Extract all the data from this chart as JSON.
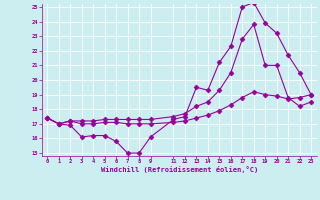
{
  "bg_color": "#cceef0",
  "grid_color": "#b0dde0",
  "line_color": "#990099",
  "xlabel": "Windchill (Refroidissement éolien,°C)",
  "ylim": [
    15,
    25
  ],
  "xlim": [
    -0.5,
    23.5
  ],
  "yticks": [
    15,
    16,
    17,
    18,
    19,
    20,
    21,
    22,
    23,
    24,
    25
  ],
  "xticks": [
    0,
    1,
    2,
    3,
    4,
    5,
    6,
    7,
    8,
    9,
    11,
    12,
    13,
    14,
    15,
    16,
    17,
    18,
    19,
    20,
    21,
    22,
    23
  ],
  "line1_x": [
    0,
    1,
    2,
    3,
    4,
    5,
    6,
    7,
    8,
    9,
    11,
    12,
    13,
    14,
    15,
    16,
    17,
    18,
    19,
    20,
    21,
    22,
    23
  ],
  "line1_y": [
    17.4,
    17.0,
    16.9,
    16.1,
    16.2,
    16.2,
    15.8,
    15.0,
    15.0,
    16.1,
    17.3,
    17.5,
    19.5,
    19.3,
    21.2,
    22.3,
    25.0,
    25.3,
    23.9,
    23.2,
    21.7,
    20.5,
    19.0
  ],
  "line2_x": [
    0,
    1,
    2,
    3,
    4,
    5,
    6,
    7,
    8,
    9,
    11,
    12,
    13,
    14,
    15,
    16,
    17,
    18,
    19,
    20,
    21,
    22,
    23
  ],
  "line2_y": [
    17.4,
    17.0,
    17.2,
    17.2,
    17.2,
    17.3,
    17.3,
    17.3,
    17.3,
    17.3,
    17.5,
    17.7,
    18.2,
    18.5,
    19.3,
    20.5,
    22.8,
    23.8,
    21.0,
    21.0,
    18.8,
    18.2,
    18.5
  ],
  "line3_x": [
    0,
    1,
    2,
    3,
    4,
    5,
    6,
    7,
    8,
    9,
    11,
    12,
    13,
    14,
    15,
    16,
    17,
    18,
    19,
    20,
    21,
    22,
    23
  ],
  "line3_y": [
    17.4,
    17.0,
    17.2,
    17.0,
    17.0,
    17.1,
    17.1,
    17.0,
    17.0,
    17.0,
    17.1,
    17.2,
    17.4,
    17.6,
    17.9,
    18.3,
    18.8,
    19.2,
    19.0,
    18.9,
    18.7,
    18.8,
    19.0
  ]
}
